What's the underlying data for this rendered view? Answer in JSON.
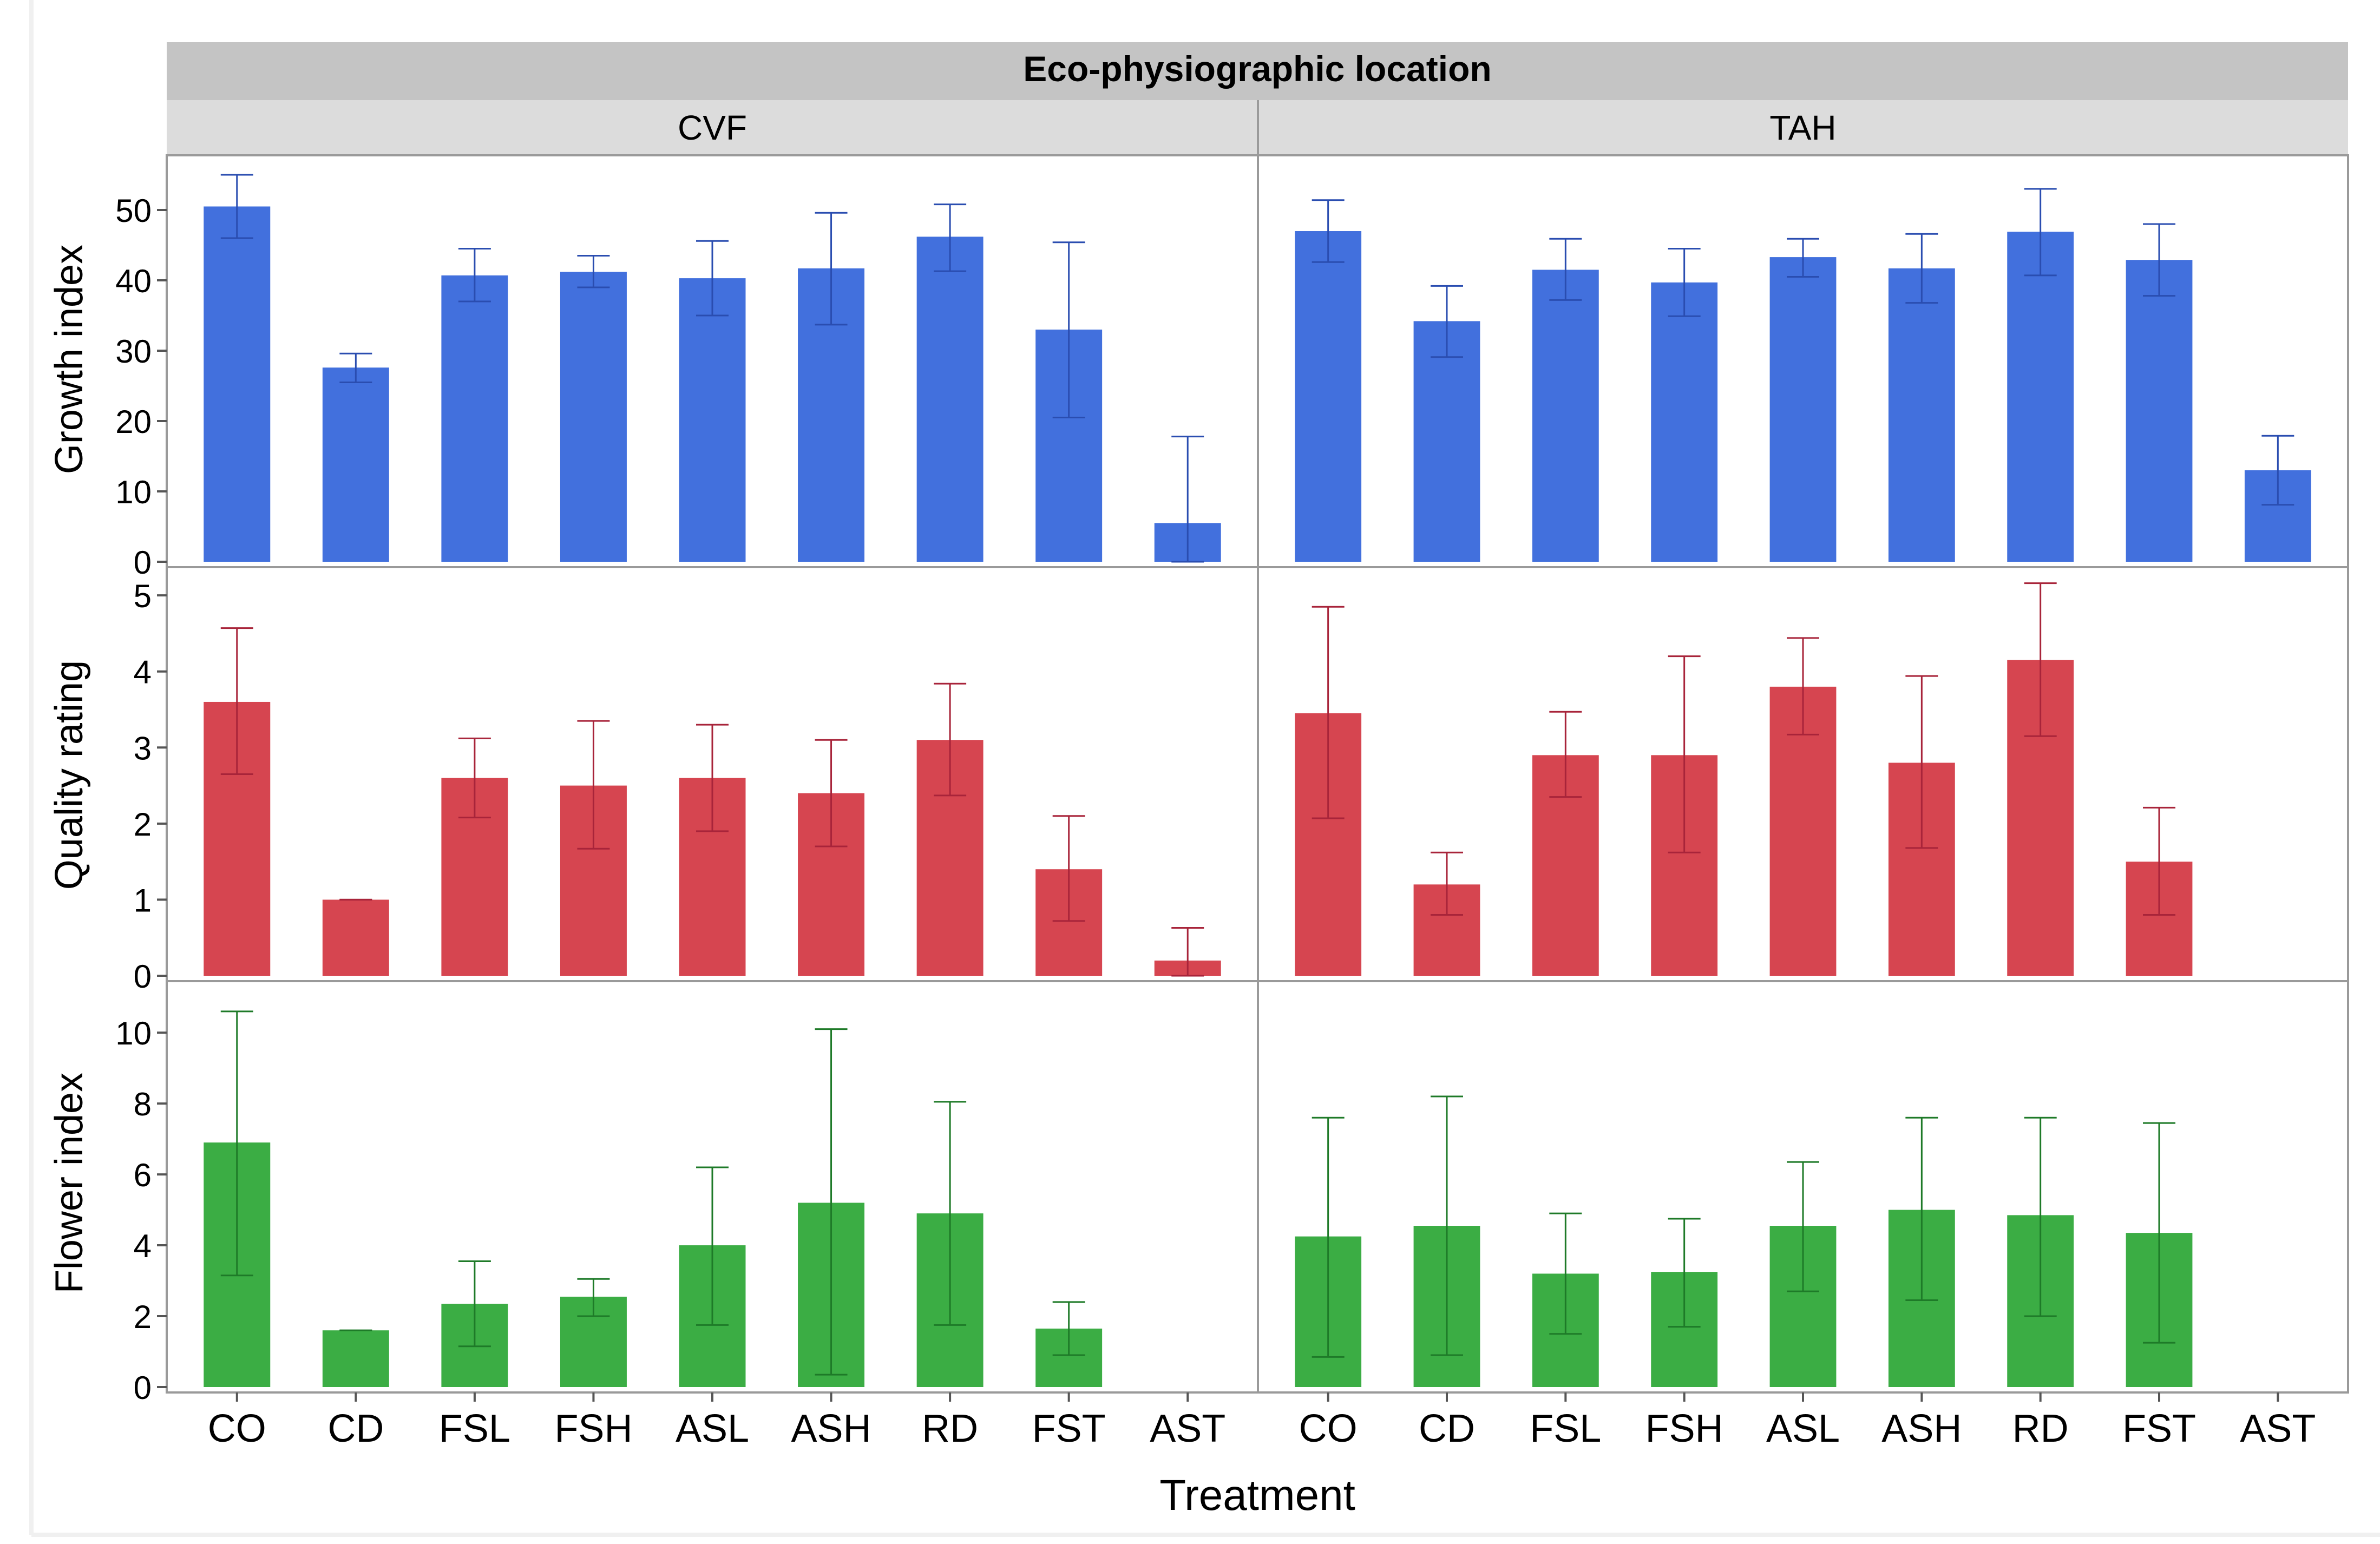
{
  "colors": {
    "growth": "#4270DD",
    "quality": "#D64550",
    "flower": "#3BAD44",
    "growth_err": "#2A4DB0",
    "quality_err": "#A8243A",
    "flower_err": "#1E7A28",
    "header_dark": "#C4C4C4",
    "header_light": "#DCDCDC"
  },
  "chart_data": {
    "type": "bar",
    "title": "Eco-physiographic location",
    "xlabel": "Treatment",
    "panels": [
      "CVF",
      "TAH"
    ],
    "categories": [
      "CO",
      "CD",
      "FSL",
      "FSH",
      "ASL",
      "ASH",
      "RD",
      "FST",
      "AST"
    ],
    "rows": [
      {
        "key": "growth",
        "ylabel": "Growth index",
        "ylim": [
          0,
          57
        ],
        "yticks": [
          0,
          10,
          20,
          30,
          40,
          50
        ],
        "series": [
          {
            "panel": "CVF",
            "values": [
              50.5,
              27.6,
              40.7,
              41.2,
              40.3,
              41.7,
              46.2,
              33.0,
              5.5
            ],
            "err_low": [
              46.0,
              25.5,
              37.0,
              39.0,
              35.0,
              33.7,
              41.3,
              20.5,
              0.0
            ],
            "err_high": [
              55.0,
              29.6,
              44.5,
              43.5,
              45.6,
              49.6,
              50.8,
              45.4,
              17.8
            ]
          },
          {
            "panel": "TAH",
            "values": [
              47.0,
              34.2,
              41.5,
              39.7,
              43.3,
              41.7,
              46.9,
              42.9,
              13.0
            ],
            "err_low": [
              42.6,
              29.1,
              37.2,
              34.9,
              40.5,
              36.8,
              40.7,
              37.8,
              8.1
            ],
            "err_high": [
              51.4,
              39.2,
              45.9,
              44.5,
              45.9,
              46.6,
              53.0,
              48.0,
              17.9
            ]
          }
        ]
      },
      {
        "key": "quality",
        "ylabel": "Quality rating",
        "ylim": [
          0,
          5.3
        ],
        "yticks": [
          0,
          1,
          2,
          3,
          4,
          5
        ],
        "series": [
          {
            "panel": "CVF",
            "values": [
              3.6,
              1.0,
              2.6,
              2.5,
              2.6,
              2.4,
              3.1,
              1.4,
              0.2
            ],
            "err_low": [
              2.65,
              1.0,
              2.08,
              1.67,
              1.9,
              1.7,
              2.37,
              0.72,
              0.0
            ],
            "err_high": [
              4.57,
              1.0,
              3.12,
              3.35,
              3.3,
              3.1,
              3.84,
              2.1,
              0.63
            ]
          },
          {
            "panel": "TAH",
            "values": [
              3.45,
              1.2,
              2.9,
              2.9,
              3.8,
              2.8,
              4.15,
              1.5,
              0.0
            ],
            "err_low": [
              2.07,
              0.8,
              2.35,
              1.62,
              3.17,
              1.68,
              3.15,
              0.8,
              0.0
            ],
            "err_high": [
              4.85,
              1.62,
              3.47,
              4.2,
              4.44,
              3.94,
              5.16,
              2.21,
              0.0
            ]
          }
        ]
      },
      {
        "key": "flower",
        "ylabel": "Flower index",
        "ylim": [
          0,
          11.3
        ],
        "yticks": [
          0,
          2,
          4,
          6,
          8,
          10
        ],
        "series": [
          {
            "panel": "CVF",
            "values": [
              6.9,
              1.6,
              2.35,
              2.55,
              4.0,
              5.2,
              4.9,
              1.65,
              0.0
            ],
            "err_low": [
              3.15,
              1.6,
              1.15,
              2.0,
              1.75,
              0.35,
              1.75,
              0.9,
              0.0
            ],
            "err_high": [
              10.6,
              1.6,
              3.55,
              3.05,
              6.2,
              10.1,
              8.05,
              2.4,
              0.0
            ]
          },
          {
            "panel": "TAH",
            "values": [
              4.25,
              4.55,
              3.2,
              3.25,
              4.55,
              5.0,
              4.85,
              4.35,
              0.0
            ],
            "err_low": [
              0.85,
              0.9,
              1.5,
              1.7,
              2.7,
              2.45,
              2.0,
              1.25,
              0.0
            ],
            "err_high": [
              7.6,
              8.2,
              4.9,
              4.75,
              6.35,
              7.6,
              7.6,
              7.45,
              0.0
            ]
          }
        ]
      }
    ]
  }
}
